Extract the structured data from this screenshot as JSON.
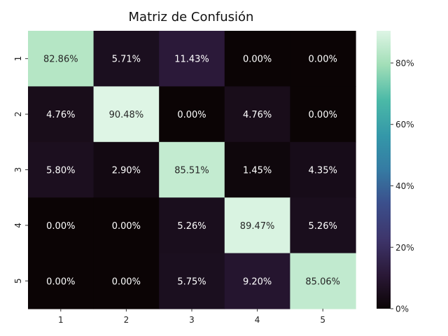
{
  "chart_data": {
    "type": "heatmap",
    "title": "Matriz de Confusión",
    "xlabel": "",
    "ylabel": "",
    "x_categories": [
      "1",
      "2",
      "3",
      "4",
      "5"
    ],
    "y_categories": [
      "1",
      "2",
      "3",
      "4",
      "5"
    ],
    "values": [
      [
        82.86,
        5.71,
        11.43,
        0.0,
        0.0
      ],
      [
        4.76,
        90.48,
        0.0,
        4.76,
        0.0
      ],
      [
        5.8,
        2.9,
        85.51,
        1.45,
        4.35
      ],
      [
        0.0,
        0.0,
        5.26,
        89.47,
        5.26
      ],
      [
        0.0,
        0.0,
        5.75,
        9.2,
        85.06
      ]
    ],
    "value_format": "percent_2dp",
    "colormap": "mako",
    "color_range": [
      0,
      90.48
    ],
    "colorbar_ticks": [
      "0%",
      "20%",
      "40%",
      "60%",
      "80%"
    ],
    "colorbar_tick_values": [
      0,
      20,
      40,
      60,
      80
    ],
    "grid": false
  }
}
